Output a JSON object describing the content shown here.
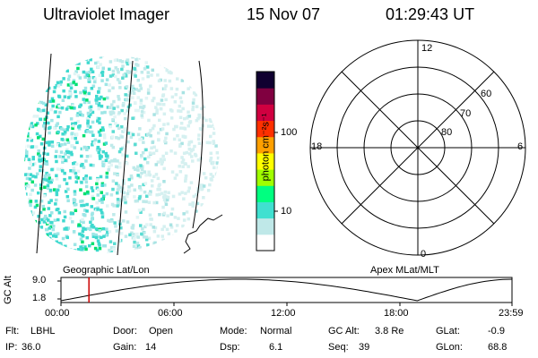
{
  "header": {
    "instrument": "Ultraviolet Imager",
    "date": "15 Nov 07",
    "time": "01:29:43 UT"
  },
  "colorbar": {
    "unit_label": "photon cm⁻²s⁻¹",
    "ticks": [
      "100",
      "10"
    ],
    "colors": [
      "#ffffff",
      "#bfe8e8",
      "#40e0d0",
      "#00ff80",
      "#a0ff00",
      "#ffff00",
      "#ffa000",
      "#ff3000",
      "#d00040",
      "#800040",
      "#100030"
    ]
  },
  "polar_plot": {
    "mlt_labels": [
      "12",
      "6",
      "0",
      "18"
    ],
    "lat_labels": [
      "60",
      "70",
      "80"
    ]
  },
  "timeline": {
    "left_label": "Geographic Lat/Lon",
    "right_label": "Apex MLat/MLT",
    "axis_title": "GC Alt",
    "y_ticks": [
      "9.0",
      "1.8"
    ],
    "x_ticks": [
      "00:00",
      "06:00",
      "12:00",
      "18:00",
      "23:59"
    ],
    "current_time_fraction": 0.062,
    "marker_color": "#cc0000"
  },
  "status": {
    "filter_label": "Flt:",
    "filter_value": "LBHL",
    "door_label": "Door:",
    "door_value": "Open",
    "mode_label": "Mode:",
    "mode_value": "Normal",
    "gc_alt_label": "GC Alt:",
    "gc_alt_value": "3.8 Re",
    "glat_label": "GLat:",
    "glat_value": "-0.9",
    "ip_label": "IP:",
    "ip_value": "36.0",
    "gain_label": "Gain:",
    "gain_value": "14",
    "dsp_label": "Dsp:",
    "dsp_value": "6.1",
    "seq_label": "Seq:",
    "seq_value": "39",
    "glon_label": "GLon:",
    "glon_value": "68.8"
  }
}
